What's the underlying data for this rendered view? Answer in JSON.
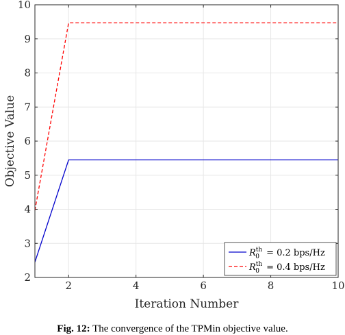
{
  "chart_data": {
    "type": "line",
    "xlabel": "Iteration Number",
    "ylabel": "Objective Value",
    "xlim": [
      1,
      10
    ],
    "ylim": [
      2,
      10
    ],
    "xticks": [
      2,
      4,
      6,
      8,
      10
    ],
    "yticks": [
      2,
      3,
      4,
      5,
      6,
      7,
      8,
      9,
      10
    ],
    "grid": true,
    "legend_position": "bottom-right",
    "series": [
      {
        "name": "R_0^th = 0.2 bps/Hz",
        "legend_parts": {
          "base": "R",
          "sub": "0",
          "sup": "th",
          "rest": " = 0.2 bps/Hz"
        },
        "color": "#0000cc",
        "dash": "solid",
        "x": [
          1,
          2,
          3,
          4,
          5,
          6,
          7,
          8,
          9,
          10
        ],
        "y": [
          2.45,
          5.45,
          5.45,
          5.45,
          5.45,
          5.45,
          5.45,
          5.45,
          5.45,
          5.45
        ]
      },
      {
        "name": "R_0^th = 0.4 bps/Hz",
        "legend_parts": {
          "base": "R",
          "sub": "0",
          "sup": "th",
          "rest": " = 0.4 bps/Hz"
        },
        "color": "#ff0000",
        "dash": "dashed",
        "x": [
          1,
          2,
          3,
          4,
          5,
          6,
          7,
          8,
          9,
          10
        ],
        "y": [
          3.97,
          9.47,
          9.47,
          9.47,
          9.47,
          9.47,
          9.47,
          9.47,
          9.47,
          9.47
        ]
      }
    ]
  },
  "caption": {
    "label": "Fig. 12:",
    "text": " The convergence of the TPMin objective value."
  }
}
